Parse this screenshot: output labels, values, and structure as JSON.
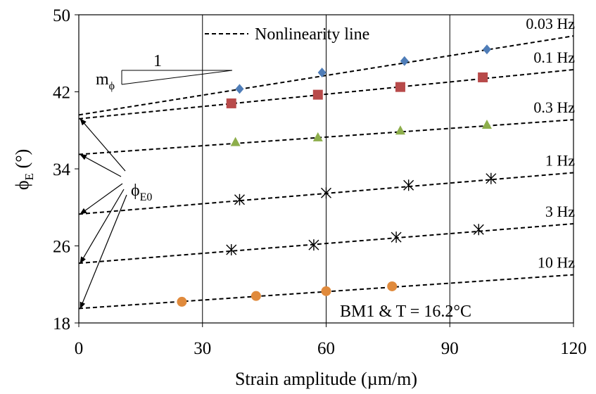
{
  "chart_data": {
    "type": "scatter",
    "title": "",
    "xlabel": "Strain amplitude (µm/m)",
    "ylabel": {
      "main": "ϕ",
      "sub": "E",
      "unit": " (°)"
    },
    "xlim": [
      0,
      120
    ],
    "ylim": [
      18,
      50
    ],
    "xticks": [
      0,
      30,
      60,
      90,
      120
    ],
    "yticks": [
      18,
      26,
      34,
      42,
      50
    ],
    "vertical_gridlines": [
      30,
      60,
      90
    ],
    "horizontal_gridlines": false,
    "legend": {
      "position": "top-center",
      "label": "Nonlinearity line"
    },
    "annotation": "BM1 & T = 16.2°C",
    "slope_triangle": {
      "run_label": "1",
      "slope_main": "m",
      "slope_sub": "ϕ"
    },
    "intercept_label": {
      "main": "ϕ",
      "sub": "E0"
    },
    "series": [
      {
        "name": "0.03 Hz",
        "marker": "diamond",
        "color": "#4F7DB8",
        "x": [
          39,
          59,
          79,
          99
        ],
        "y": [
          42.3,
          44.0,
          45.2,
          46.4
        ],
        "line": {
          "intercept": 39.6,
          "end": 47.8
        }
      },
      {
        "name": "0.1 Hz",
        "marker": "square",
        "color": "#B84A4A",
        "x": [
          37,
          58,
          78,
          98
        ],
        "y": [
          40.8,
          41.7,
          42.5,
          43.5
        ],
        "line": {
          "intercept": 39.2,
          "end": 44.3
        }
      },
      {
        "name": "0.3 Hz",
        "marker": "triangle",
        "color": "#8DAE4B",
        "x": [
          38,
          58,
          78,
          99
        ],
        "y": [
          36.8,
          37.3,
          38.0,
          38.6
        ],
        "line": {
          "intercept": 35.5,
          "end": 39.1
        }
      },
      {
        "name": "1 Hz",
        "marker": "asterisk",
        "color": "#000000",
        "x": [
          39,
          60,
          80,
          100
        ],
        "y": [
          30.8,
          31.5,
          32.3,
          33.0
        ],
        "line": {
          "intercept": 29.3,
          "end": 33.6
        }
      },
      {
        "name": "3 Hz",
        "marker": "asterisk",
        "color": "#000000",
        "x": [
          37,
          57,
          77,
          97
        ],
        "y": [
          25.6,
          26.1,
          26.9,
          27.7
        ],
        "line": {
          "intercept": 24.2,
          "end": 28.3
        }
      },
      {
        "name": "10 Hz",
        "marker": "circle",
        "color": "#E08A3C",
        "x": [
          25,
          43,
          60,
          76
        ],
        "y": [
          20.2,
          20.8,
          21.3,
          21.8
        ],
        "line": {
          "intercept": 19.5,
          "end": 23.0
        }
      }
    ]
  }
}
